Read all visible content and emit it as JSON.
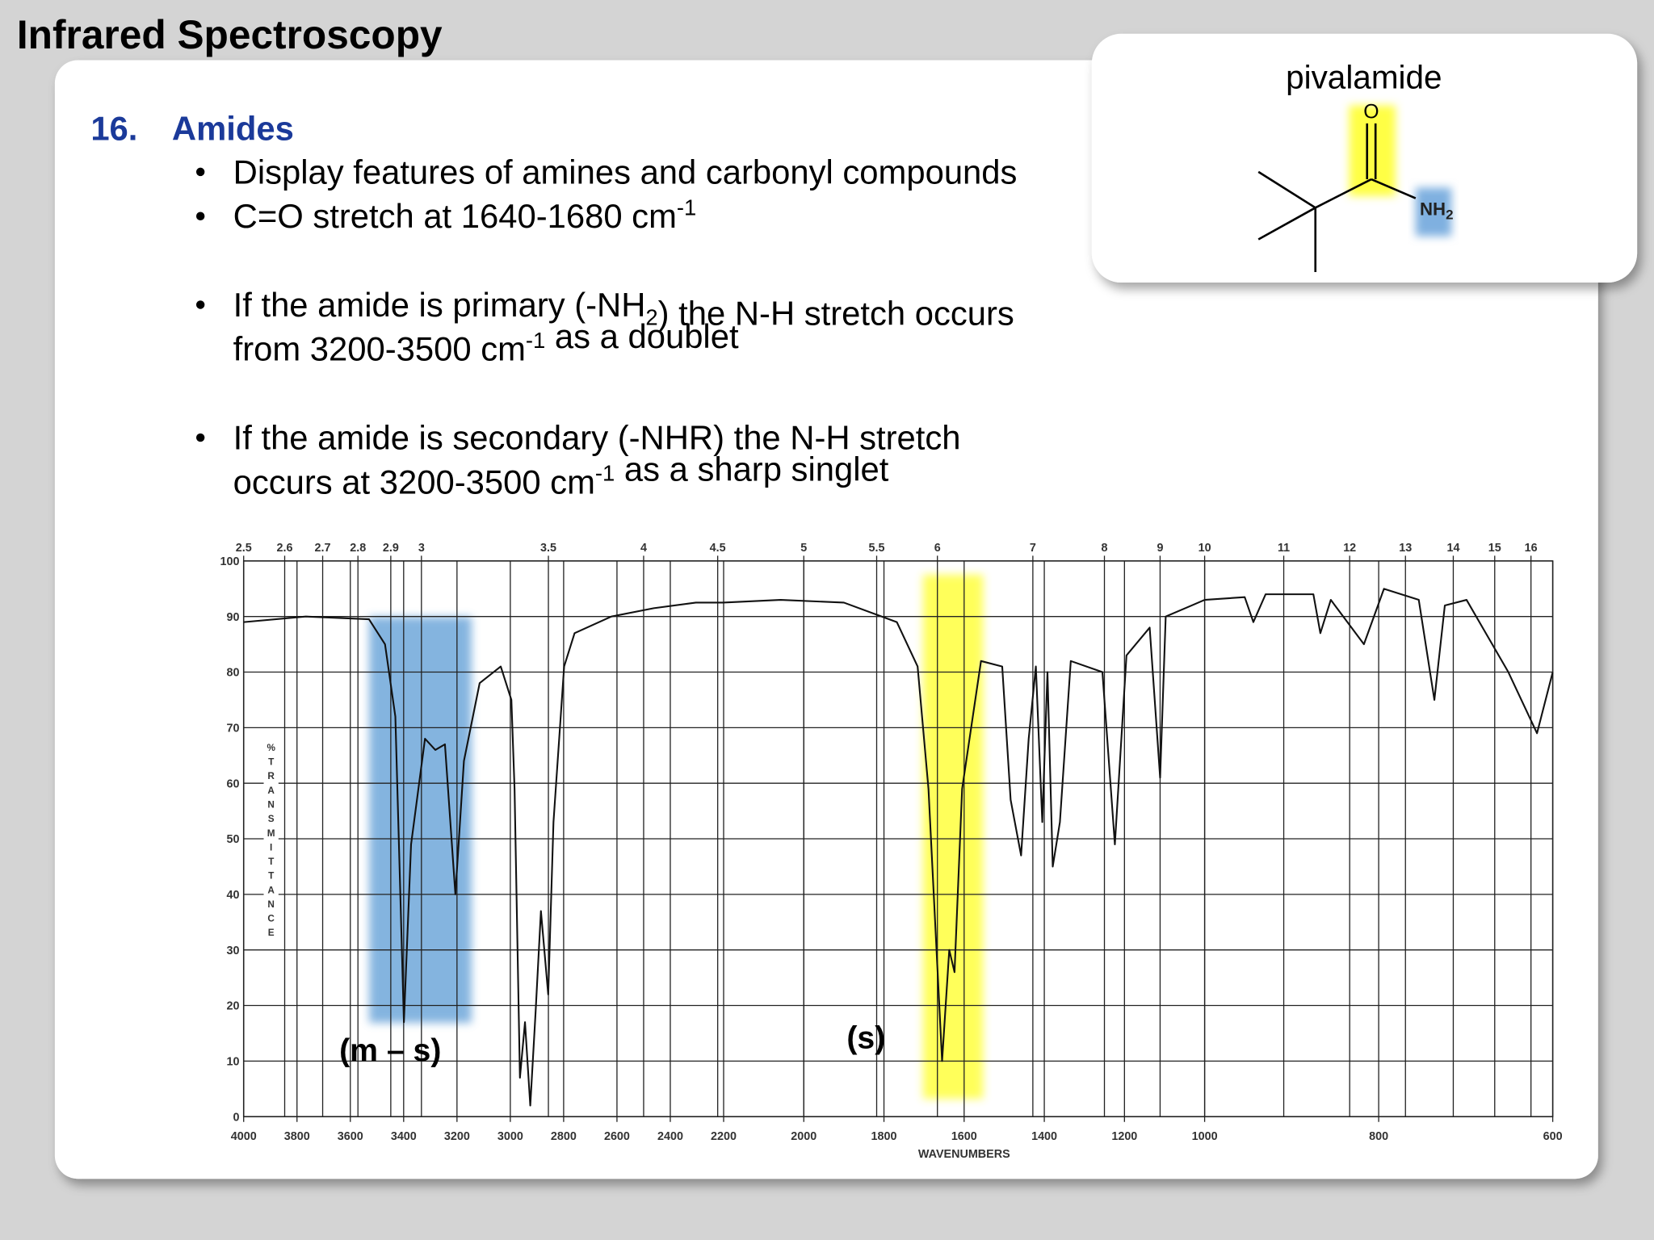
{
  "title": "Infrared Spectroscopy",
  "section": {
    "number": "16.",
    "heading": "Amides"
  },
  "bullets": [
    [
      [
        {
          "text": "Display features of amines and carbonyl compounds"
        }
      ]
    ],
    [
      [
        {
          "text": "C=O stretch at 1640-1680 cm"
        },
        {
          "sup": "-1"
        }
      ]
    ],
    [
      [
        {
          "text": "If the amide is primary (-NH"
        },
        {
          "sub": "2"
        },
        {
          "text": ") the N-H stretch occurs"
        }
      ],
      [
        {
          "text": "from 3200-3500 cm"
        },
        {
          "sup": "-1"
        },
        {
          "text": " as a doublet"
        }
      ]
    ],
    [
      [
        {
          "text": "If the amide is secondary (-NHR) the N-H stretch"
        }
      ],
      [
        {
          "text": "occurs at 3200-3500 cm"
        },
        {
          "sup": "-1"
        },
        {
          "text": " as a sharp singlet"
        }
      ]
    ]
  ],
  "molecule": {
    "name": "pivalamide",
    "oxygen": "O",
    "amine": {
      "text": "NH",
      "sub": "2"
    }
  },
  "chart_data": {
    "type": "line",
    "xlabel": "WAVENUMBERS",
    "ylabel": "%TRANSMITTANCE",
    "x": [
      4000,
      3767,
      3530,
      3470,
      3431,
      3399,
      3372,
      3320,
      3281,
      3245,
      3206,
      3174,
      3115,
      3036,
      2996,
      2984,
      2964,
      2945,
      2925,
      2905,
      2885,
      2858,
      2838,
      2798,
      2759,
      2621,
      2462,
      2304,
      2202,
      2058,
      1900,
      1768,
      1716,
      1689,
      1655,
      1637,
      1624,
      1605,
      1558,
      1505,
      1484,
      1458,
      1439,
      1421,
      1405,
      1392,
      1379,
      1361,
      1334,
      1255,
      1224,
      1195,
      1137,
      1111,
      1097,
      1032,
      1000,
      954,
      944,
      930,
      875,
      867,
      855,
      817,
      794,
      754,
      736,
      724,
      699,
      651,
      618,
      600
    ],
    "series": [
      {
        "color": "#111111",
        "values": [
          89,
          90,
          89.5,
          85,
          72,
          17,
          49,
          68,
          66,
          67,
          40,
          64,
          78,
          81,
          75,
          59,
          7,
          17,
          2,
          19,
          37,
          22,
          53,
          81,
          87,
          90,
          91.5,
          92.5,
          92.5,
          93,
          92.5,
          89,
          81,
          59,
          10,
          30,
          26,
          59,
          82,
          81,
          57,
          47,
          68,
          81,
          53,
          80,
          45,
          53,
          82,
          80,
          49,
          83,
          88,
          61,
          90,
          92,
          93,
          93.5,
          89,
          94,
          94,
          87,
          93,
          85,
          95,
          93,
          75,
          92,
          93,
          80,
          69,
          80
        ]
      }
    ],
    "xlim": [
      4000,
      600
    ],
    "xticks": [
      4000,
      3800,
      3600,
      3400,
      3200,
      3000,
      2800,
      2600,
      2400,
      2200,
      2000,
      1800,
      1600,
      1400,
      1200,
      1000,
      800,
      600
    ],
    "x2ticks": [
      2.5,
      2.6,
      2.7,
      2.8,
      2.9,
      3,
      3.5,
      4,
      4.5,
      5,
      5.5,
      6,
      7,
      8,
      9,
      10,
      11,
      12,
      13,
      14,
      15,
      16
    ],
    "ylim": [
      0,
      100
    ],
    "yticks": [
      0,
      10,
      20,
      30,
      40,
      50,
      60,
      70,
      80,
      90,
      100
    ],
    "grid": true,
    "annotations": [
      {
        "text": "(m – s)"
      },
      {
        "text": "(s)"
      }
    ]
  }
}
